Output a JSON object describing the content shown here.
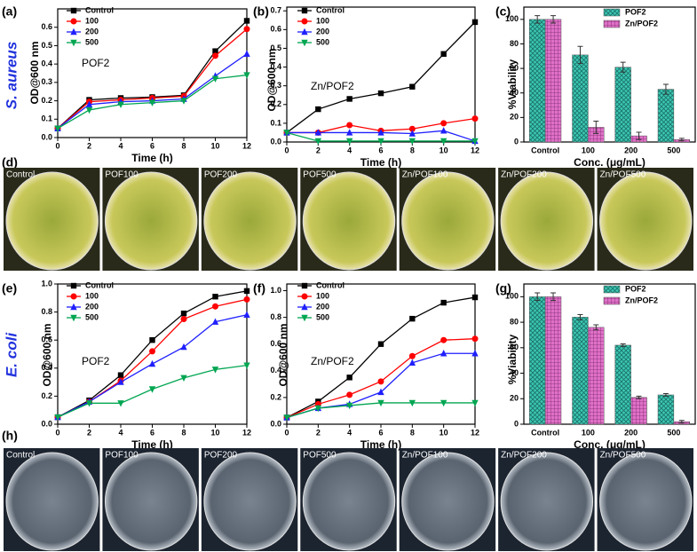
{
  "chart_data": [
    {
      "type": "line",
      "panel": "(a)",
      "side_label": "S. aureus",
      "annotation": "POF2",
      "xlabel": "Time (h)",
      "ylabel": "OD@600 nm",
      "x": [
        0,
        2,
        4,
        6,
        8,
        10,
        12
      ],
      "xlim": [
        0,
        12
      ],
      "xticks": [
        0,
        2,
        4,
        6,
        8,
        10,
        12
      ],
      "ylim": [
        0,
        0.7
      ],
      "yticks": [
        {
          "value": 0,
          "label": "0.0"
        },
        0.1,
        0.2,
        0.3,
        0.4,
        0.5,
        0.6
      ],
      "legend": "upper left",
      "series": [
        {
          "name": "Control",
          "color": "#000000",
          "marker": "square",
          "values": [
            0.05,
            0.205,
            0.215,
            0.22,
            0.23,
            0.47,
            0.635
          ]
        },
        {
          "name": "100",
          "color": "#ff0000",
          "marker": "circle",
          "values": [
            0.05,
            0.195,
            0.205,
            0.215,
            0.225,
            0.445,
            0.59
          ]
        },
        {
          "name": "200",
          "color": "#1f1fff",
          "marker": "triangle-up",
          "values": [
            0.05,
            0.18,
            0.195,
            0.2,
            0.21,
            0.335,
            0.455
          ]
        },
        {
          "name": "500",
          "color": "#00a651",
          "marker": "triangle-down",
          "values": [
            0.05,
            0.15,
            0.18,
            0.19,
            0.2,
            0.32,
            0.34
          ]
        }
      ]
    },
    {
      "type": "line",
      "panel": "(b)",
      "annotation": "Zn/POF2",
      "xlabel": "Time (h)",
      "ylabel": "OD@600 nm",
      "x": [
        0,
        2,
        4,
        6,
        8,
        10,
        12
      ],
      "xlim": [
        0,
        12
      ],
      "xticks": [
        0,
        2,
        4,
        6,
        8,
        10,
        12
      ],
      "ylim": [
        0,
        0.72
      ],
      "yticks": [
        {
          "value": 0,
          "label": "0.0"
        },
        0.1,
        0.2,
        0.3,
        0.4,
        0.5,
        0.6,
        0.7
      ],
      "legend": "upper left",
      "series": [
        {
          "name": "Control",
          "color": "#000000",
          "marker": "square",
          "values": [
            0.05,
            0.175,
            0.23,
            0.26,
            0.295,
            0.47,
            0.64
          ]
        },
        {
          "name": "100",
          "color": "#ff0000",
          "marker": "circle",
          "values": [
            0.05,
            0.05,
            0.09,
            0.06,
            0.07,
            0.1,
            0.125
          ]
        },
        {
          "name": "200",
          "color": "#1f1fff",
          "marker": "triangle-up",
          "values": [
            0.05,
            0.05,
            0.05,
            0.05,
            0.045,
            0.06,
            0.005
          ]
        },
        {
          "name": "500",
          "color": "#00a651",
          "marker": "triangle-down",
          "values": [
            0.05,
            0.005,
            0.005,
            0.005,
            0.005,
            0.005,
            0.005
          ]
        }
      ]
    },
    {
      "type": "bar",
      "panel": "(c)",
      "xlabel": "Conc. (μg/mL)",
      "ylabel": "%Viability",
      "categories": [
        "Control",
        "100",
        "200",
        "500"
      ],
      "ylim": [
        0,
        110
      ],
      "yticks": [
        0,
        20,
        40,
        60,
        80,
        100
      ],
      "legend": "upper right",
      "series": [
        {
          "name": "POF2",
          "color": "#3cc8b4",
          "values": [
            100,
            71,
            61,
            43
          ],
          "errors": [
            3,
            7,
            4,
            4
          ]
        },
        {
          "name": "Zn/POF2",
          "color": "#e070c8",
          "values": [
            100,
            12,
            5,
            2
          ],
          "errors": [
            3,
            5,
            3,
            1
          ]
        }
      ]
    },
    {
      "type": "line",
      "panel": "(e)",
      "side_label": "E. coli",
      "annotation": "POF2",
      "xlabel": "Time (h)",
      "ylabel": "OD@600 nm",
      "x": [
        0,
        2,
        4,
        6,
        8,
        10,
        12
      ],
      "xlim": [
        0,
        12
      ],
      "xticks": [
        0,
        2,
        4,
        6,
        8,
        10,
        12
      ],
      "ylim": [
        0,
        1.0
      ],
      "yticks": [
        {
          "value": 0,
          "label": "0.0"
        },
        0.2,
        0.4,
        0.6,
        0.8,
        {
          "value": 1,
          "label": "1.0"
        }
      ],
      "legend": "upper left",
      "series": [
        {
          "name": "Control",
          "color": "#000000",
          "marker": "square",
          "values": [
            0.05,
            0.17,
            0.35,
            0.6,
            0.79,
            0.91,
            0.95
          ]
        },
        {
          "name": "100",
          "color": "#ff0000",
          "marker": "circle",
          "values": [
            0.05,
            0.16,
            0.31,
            0.52,
            0.75,
            0.84,
            0.89
          ]
        },
        {
          "name": "200",
          "color": "#1f1fff",
          "marker": "triangle-up",
          "values": [
            0.05,
            0.16,
            0.3,
            0.43,
            0.55,
            0.73,
            0.78
          ]
        },
        {
          "name": "500",
          "color": "#00a651",
          "marker": "triangle-down",
          "values": [
            0.05,
            0.15,
            0.15,
            0.25,
            0.33,
            0.39,
            0.42
          ]
        }
      ]
    },
    {
      "type": "line",
      "panel": "(f)",
      "annotation": "Zn/POF2",
      "xlabel": "Time (h)",
      "ylabel": "OD@600 nm",
      "x": [
        0,
        2,
        4,
        6,
        8,
        10,
        12
      ],
      "xlim": [
        0,
        12
      ],
      "xticks": [
        0,
        2,
        4,
        6,
        8,
        10,
        12
      ],
      "ylim": [
        0,
        1.05
      ],
      "yticks": [
        {
          "value": 0,
          "label": "0.0"
        },
        0.2,
        0.4,
        0.6,
        0.8,
        {
          "value": 1,
          "label": "1.0"
        }
      ],
      "legend": "upper left",
      "series": [
        {
          "name": "Control",
          "color": "#000000",
          "marker": "square",
          "values": [
            0.05,
            0.17,
            0.35,
            0.6,
            0.79,
            0.91,
            0.95
          ]
        },
        {
          "name": "100",
          "color": "#ff0000",
          "marker": "circle",
          "values": [
            0.05,
            0.15,
            0.22,
            0.32,
            0.51,
            0.63,
            0.64
          ]
        },
        {
          "name": "200",
          "color": "#1f1fff",
          "marker": "triangle-up",
          "values": [
            0.05,
            0.12,
            0.15,
            0.24,
            0.46,
            0.53,
            0.53
          ]
        },
        {
          "name": "500",
          "color": "#00a651",
          "marker": "triangle-down",
          "values": [
            0.05,
            0.12,
            0.14,
            0.16,
            0.16,
            0.16,
            0.16
          ]
        }
      ]
    },
    {
      "type": "bar",
      "panel": "(g)",
      "xlabel": "Conc. (μg/mL)",
      "ylabel": "%Viability",
      "categories": [
        "Control",
        "100",
        "200",
        "500"
      ],
      "ylim": [
        0,
        110
      ],
      "yticks": [
        0,
        20,
        40,
        60,
        80,
        100
      ],
      "legend": "upper right",
      "series": [
        {
          "name": "POF2",
          "color": "#3cc8b4",
          "values": [
            100,
            84,
            62,
            23
          ],
          "errors": [
            3,
            2,
            1,
            1
          ]
        },
        {
          "name": "Zn/POF2",
          "color": "#e070c8",
          "values": [
            100,
            76,
            21,
            2
          ],
          "errors": [
            3,
            2,
            1,
            1
          ]
        }
      ]
    }
  ],
  "photos": [
    {
      "panel": "(d)",
      "labels": [
        "Control",
        "POF100",
        "POF200",
        "POF500",
        "Zn/POF100",
        "Zn/POF200",
        "Zn/POF500"
      ]
    },
    {
      "panel": "(h)",
      "labels": [
        "Control",
        "POF100",
        "POF200",
        "POF500",
        "Zn/POF100",
        "Zn/POF200",
        "Zn/POF500"
      ]
    }
  ]
}
